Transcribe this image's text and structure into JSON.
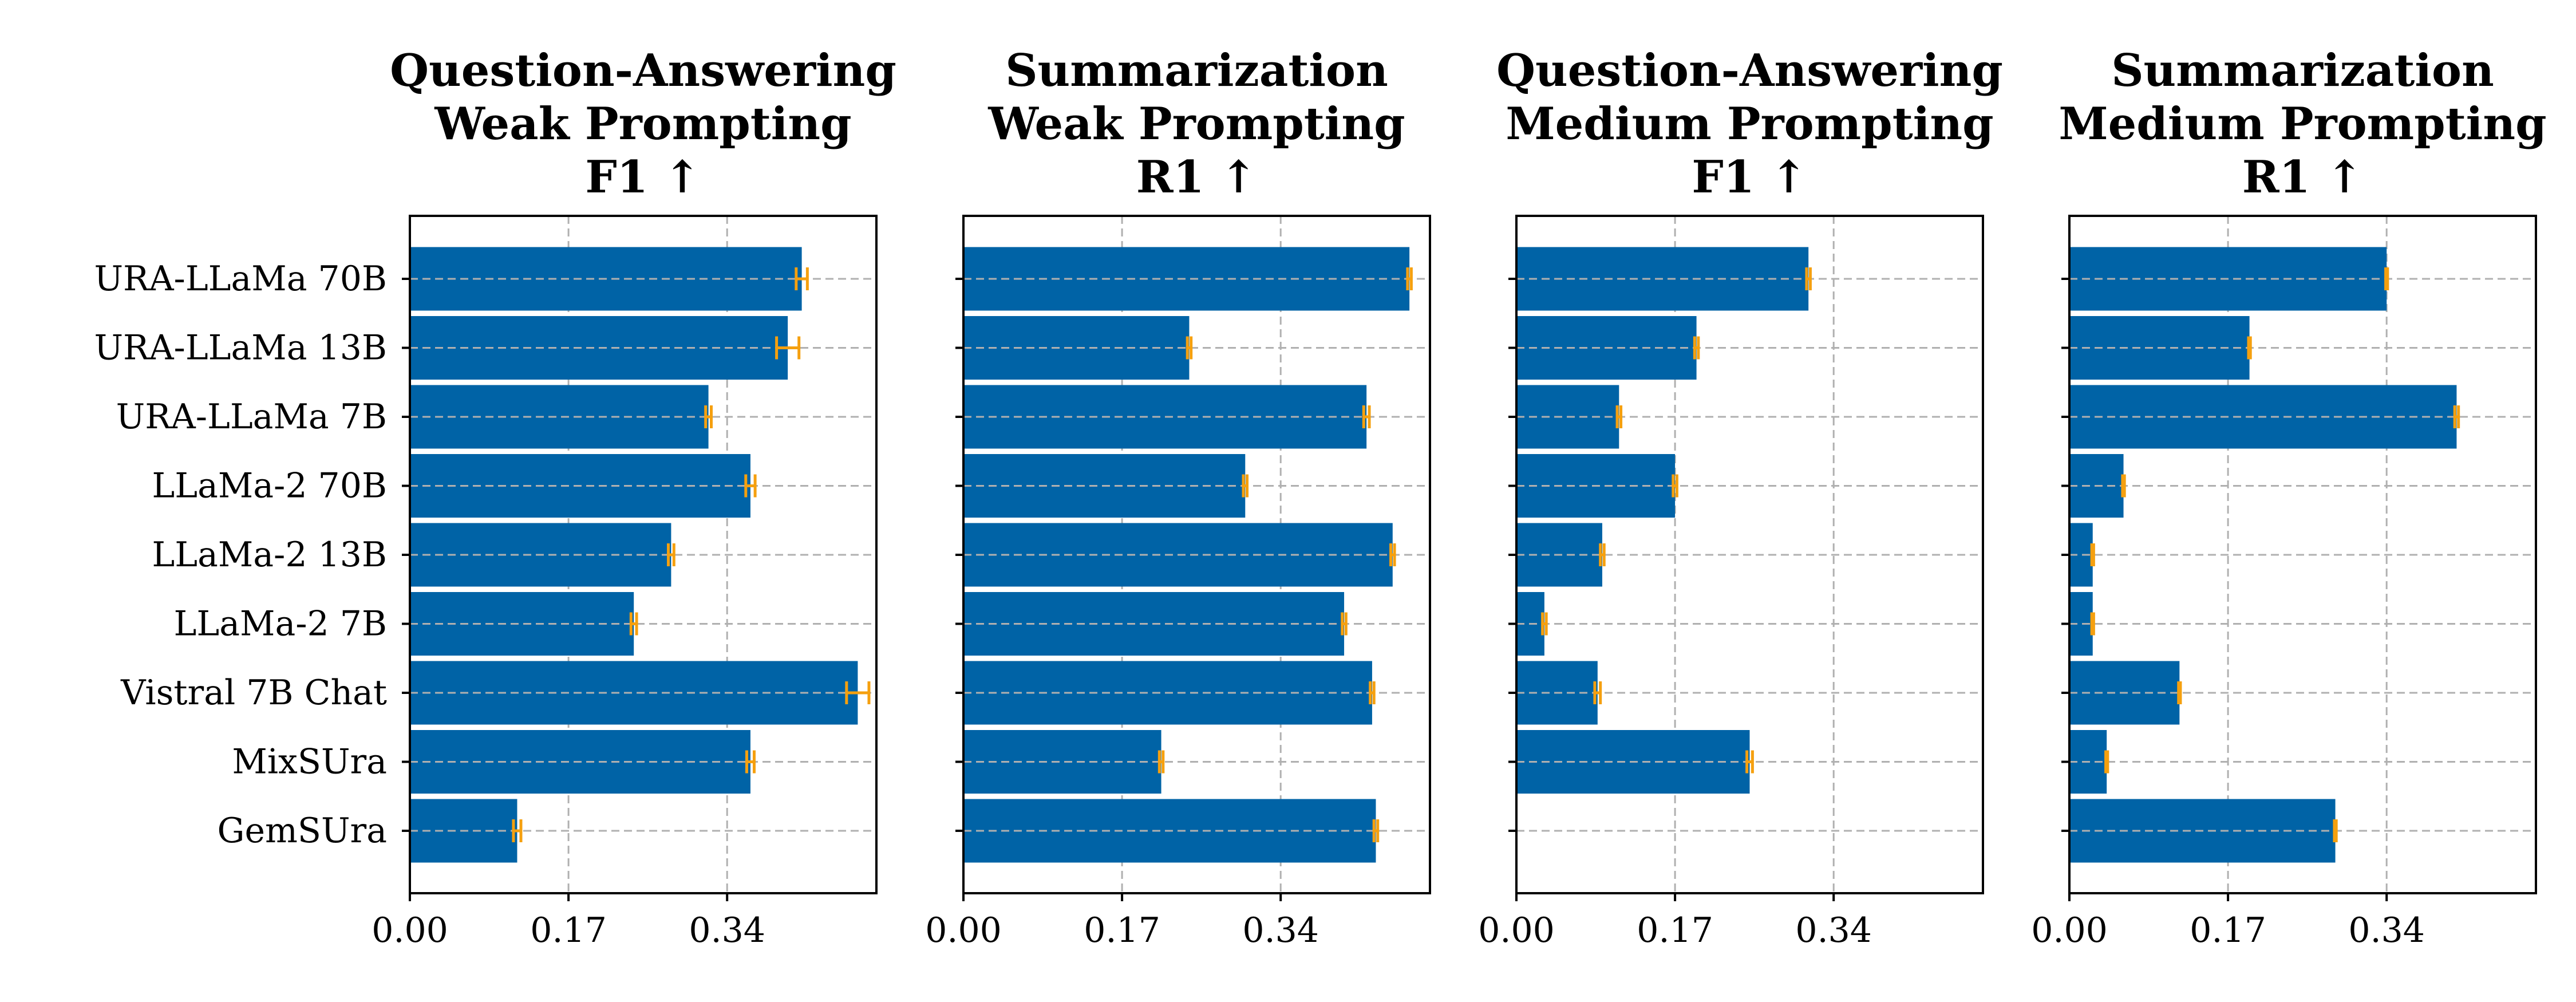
{
  "colors": {
    "bar": "#0063a6",
    "errorbar": "#f5a00f",
    "grid": "#b0b0b0",
    "axis": "#000000"
  },
  "chart_data": [
    {
      "type": "bar",
      "orientation": "horizontal",
      "title": [
        "Question-Answering",
        "Weak Prompting",
        "F1 ↑"
      ],
      "categories": [
        "URA-LLaMa 70B",
        "URA-LLaMa 13B",
        "URA-LLaMa 7B",
        "LLaMa-2 70B",
        "LLaMa-2 13B",
        "LLaMa-2 7B",
        "Vistral 7B Chat",
        "MixSUra",
        "GemSUra"
      ],
      "values": [
        0.42,
        0.405,
        0.32,
        0.365,
        0.28,
        0.24,
        0.48,
        0.365,
        0.115
      ],
      "errors": [
        0.006,
        0.012,
        0.003,
        0.005,
        0.003,
        0.003,
        0.012,
        0.004,
        0.004
      ],
      "xlim": [
        0,
        0.5
      ],
      "xticks": [
        "0.00",
        "0.17",
        "0.34"
      ],
      "xtick_values": [
        0,
        0.17,
        0.34
      ],
      "show_ylabels": true,
      "grid": true
    },
    {
      "type": "bar",
      "orientation": "horizontal",
      "title": [
        "Summarization",
        "Weak Prompting",
        "R1 ↑"
      ],
      "categories": [
        "URA-LLaMa 70B",
        "URA-LLaMa 13B",
        "URA-LLaMa 7B",
        "LLaMa-2 70B",
        "LLaMa-2 13B",
        "LLaMa-2 7B",
        "Vistral 7B Chat",
        "MixSUra",
        "GemSUra"
      ],
      "values": [
        0.478,
        0.242,
        0.432,
        0.302,
        0.46,
        0.408,
        0.438,
        0.212,
        0.442
      ],
      "errors": [
        0.002,
        0.002,
        0.003,
        0.002,
        0.002,
        0.002,
        0.002,
        0.002,
        0.002
      ],
      "xlim": [
        0,
        0.5
      ],
      "xticks": [
        "0.00",
        "0.17",
        "0.34"
      ],
      "xtick_values": [
        0,
        0.17,
        0.34
      ],
      "show_ylabels": false,
      "grid": true
    },
    {
      "type": "bar",
      "orientation": "horizontal",
      "title": [
        "Question-Answering",
        "Medium Prompting",
        "F1 ↑"
      ],
      "categories": [
        "URA-LLaMa 70B",
        "URA-LLaMa 13B",
        "URA-LLaMa 7B",
        "LLaMa-2 70B",
        "LLaMa-2 13B",
        "LLaMa-2 7B",
        "Vistral 7B Chat",
        "MixSUra",
        "GemSUra"
      ],
      "values": [
        0.313,
        0.193,
        0.11,
        0.17,
        0.092,
        0.03,
        0.087,
        0.25,
        0.0
      ],
      "errors": [
        0.002,
        0.002,
        0.002,
        0.002,
        0.002,
        0.002,
        0.003,
        0.003,
        0.0
      ],
      "xlim": [
        0,
        0.5
      ],
      "xticks": [
        "0.00",
        "0.17",
        "0.34"
      ],
      "xtick_values": [
        0,
        0.17,
        0.34
      ],
      "show_ylabels": false,
      "grid": true
    },
    {
      "type": "bar",
      "orientation": "horizontal",
      "title": [
        "Summarization",
        "Medium Prompting",
        "R1 ↑"
      ],
      "categories": [
        "URA-LLaMa 70B",
        "URA-LLaMa 13B",
        "URA-LLaMa 7B",
        "LLaMa-2 70B",
        "LLaMa-2 13B",
        "LLaMa-2 7B",
        "Vistral 7B Chat",
        "MixSUra",
        "GemSUra"
      ],
      "values": [
        0.34,
        0.193,
        0.415,
        0.058,
        0.025,
        0.025,
        0.118,
        0.04,
        0.285
      ],
      "errors": [
        0.001,
        0.001,
        0.002,
        0.001,
        0.001,
        0.001,
        0.001,
        0.001,
        0.001
      ],
      "xlim": [
        0,
        0.5
      ],
      "xticks": [
        "0.00",
        "0.17",
        "0.34"
      ],
      "xtick_values": [
        0,
        0.17,
        0.34
      ],
      "show_ylabels": false,
      "grid": true
    }
  ]
}
